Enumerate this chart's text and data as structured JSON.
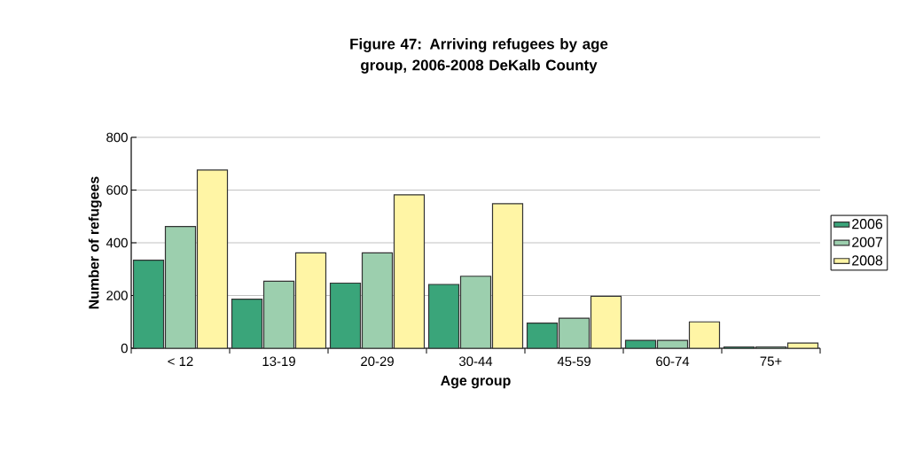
{
  "chart_data": {
    "type": "bar",
    "title": "Figure 47: Arriving refugees by age group, 2006-2008 DeKalb County",
    "xlabel": "Age group",
    "ylabel": "Number of refugees",
    "categories": [
      "< 12",
      "13-19",
      "20-29",
      "30-44",
      "45-59",
      "60-74",
      "75+"
    ],
    "series": [
      {
        "name": "2006",
        "color": "#3aa57a",
        "values": [
          334,
          186,
          247,
          242,
          95,
          30,
          5
        ]
      },
      {
        "name": "2007",
        "color": "#9ccfae",
        "values": [
          462,
          254,
          362,
          273,
          114,
          30,
          5
        ]
      },
      {
        "name": "2008",
        "color": "#fff5a5",
        "values": [
          676,
          362,
          582,
          548,
          197,
          100,
          20
        ]
      }
    ],
    "ylim": [
      0,
      800
    ],
    "yticks": [
      0,
      200,
      400,
      600,
      800
    ],
    "grid": "y",
    "legend": "right"
  }
}
